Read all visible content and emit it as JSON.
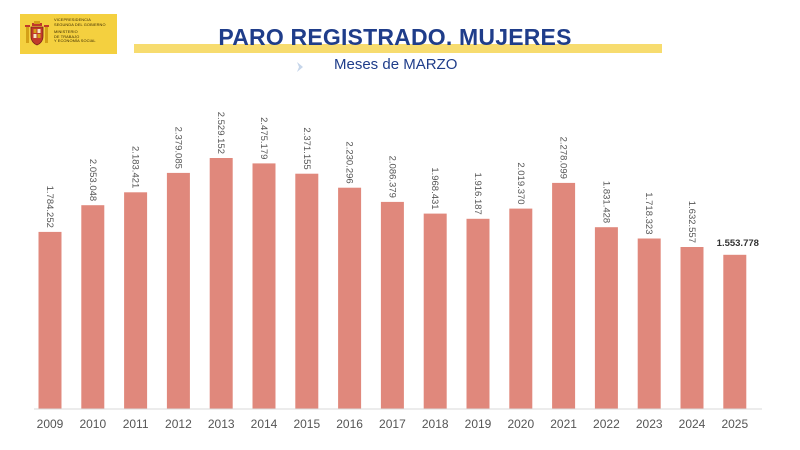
{
  "header": {
    "title": "PARO REGISTRADO. MUJERES",
    "subtitle": "Meses de MARZO"
  },
  "logo": {
    "lines": [
      "VICEPRESIDENCIA",
      "SEGUNDA DEL GOBIERNO",
      "MINISTERIO",
      "DE TRABAJO",
      "Y ECONOMÍA SOCIAL"
    ],
    "icon": "coat-of-arms-icon"
  },
  "colors": {
    "bar": "#e0887c",
    "title": "#1f3d8a",
    "accent_bar": "#f7dc6f",
    "logo_bg": "#f4d03f",
    "label": "#555555",
    "last_label": "#333333"
  },
  "chart_data": {
    "type": "bar",
    "title": "PARO REGISTRADO. MUJERES",
    "subtitle": "Meses de MARZO",
    "xlabel": "",
    "ylabel": "",
    "categories": [
      "2009",
      "2010",
      "2011",
      "2012",
      "2013",
      "2014",
      "2015",
      "2016",
      "2017",
      "2018",
      "2019",
      "2020",
      "2021",
      "2022",
      "2023",
      "2024",
      "2025"
    ],
    "values": [
      1784252,
      2053048,
      2183421,
      2379085,
      2529152,
      2475179,
      2371155,
      2230296,
      2086379,
      1968431,
      1916187,
      2019370,
      2278099,
      1831428,
      1718323,
      1632557,
      1553778
    ],
    "data_labels": [
      "1.784.252",
      "2.053.048",
      "2.183.421",
      "2.379.085",
      "2.529.152",
      "2.475.179",
      "2.371.155",
      "2.230.296",
      "2.086.379",
      "1.968.431",
      "1.916.187",
      "2.019.370",
      "2.278.099",
      "1.831.428",
      "1.718.323",
      "1.632.557",
      "1.553.778"
    ],
    "ylim": [
      0,
      2529152
    ],
    "grid": false,
    "legend": "none"
  }
}
